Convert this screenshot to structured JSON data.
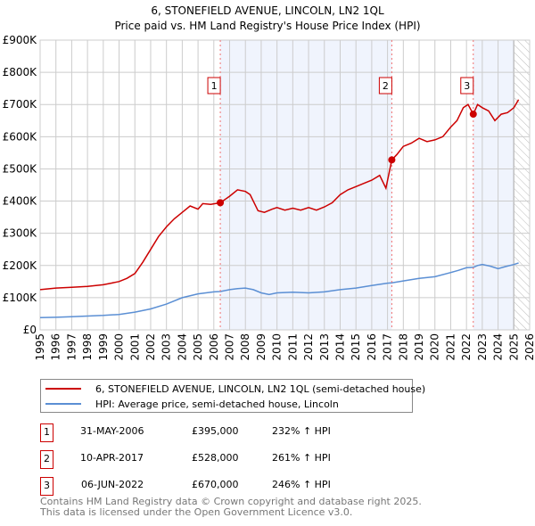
{
  "title": "6, STONEFIELD AVENUE, LINCOLN, LN2 1QL",
  "subtitle": "Price paid vs. HM Land Registry's House Price Index (HPI)",
  "chart_data": {
    "type": "line",
    "xlim": [
      1995,
      2026
    ],
    "ylim": [
      0,
      900000
    ],
    "y_ticks": [
      0,
      100000,
      200000,
      300000,
      400000,
      500000,
      600000,
      700000,
      800000,
      900000
    ],
    "y_tick_labels": [
      "£0",
      "£100K",
      "£200K",
      "£300K",
      "£400K",
      "£500K",
      "£600K",
      "£700K",
      "£800K",
      "£900K"
    ],
    "x_ticks": [
      "1995",
      "1996",
      "1997",
      "1998",
      "1999",
      "2000",
      "2001",
      "2002",
      "2003",
      "2004",
      "2005",
      "2006",
      "2007",
      "2008",
      "2009",
      "2010",
      "2011",
      "2012",
      "2013",
      "2014",
      "2015",
      "2016",
      "2017",
      "2018",
      "2019",
      "2020",
      "2021",
      "2022",
      "2023",
      "2024",
      "2025",
      "2026"
    ],
    "grid": true,
    "forecast_hatch_from": 2025.0,
    "series": [
      {
        "name": "6, STONEFIELD AVENUE, LINCOLN, LN2 1QL (semi-detached house)",
        "color": "#cc0000",
        "x": [
          1995,
          1996,
          1997,
          1998,
          1999,
          1999.5,
          2000,
          2000.5,
          2001,
          2001.5,
          2002,
          2002.5,
          2003,
          2003.5,
          2004,
          2004.5,
          2005,
          2005.3,
          2005.8,
          2006.41,
          2007,
          2007.5,
          2008,
          2008.3,
          2008.8,
          2009.2,
          2009.7,
          2010,
          2010.5,
          2011,
          2011.5,
          2012,
          2012.5,
          2013,
          2013.5,
          2014,
          2014.5,
          2015,
          2015.5,
          2016,
          2016.5,
          2016.9,
          2017.27,
          2017.6,
          2018,
          2018.5,
          2019,
          2019.5,
          2020,
          2020.5,
          2021,
          2021.4,
          2021.8,
          2022.1,
          2022.43,
          2022.7,
          2023,
          2023.4,
          2023.8,
          2024.2,
          2024.6,
          2025,
          2025.3
        ],
        "y": [
          125000,
          130000,
          132000,
          135000,
          140000,
          145000,
          150000,
          160000,
          175000,
          210000,
          250000,
          290000,
          320000,
          345000,
          365000,
          385000,
          375000,
          392000,
          390000,
          395000,
          415000,
          435000,
          430000,
          420000,
          370000,
          365000,
          375000,
          380000,
          372000,
          378000,
          372000,
          380000,
          372000,
          382000,
          395000,
          420000,
          435000,
          445000,
          455000,
          465000,
          480000,
          440000,
          528000,
          545000,
          570000,
          580000,
          595000,
          585000,
          590000,
          600000,
          630000,
          650000,
          690000,
          700000,
          670000,
          700000,
          690000,
          680000,
          650000,
          670000,
          675000,
          690000,
          715000
        ]
      },
      {
        "name": "HPI: Average price, semi-detached house, Lincoln",
        "color": "#5b8fd4",
        "x": [
          1995,
          1996,
          1997,
          1998,
          1999,
          2000,
          2001,
          2002,
          2003,
          2004,
          2005,
          2006,
          2006.41,
          2007,
          2007.5,
          2008,
          2008.5,
          2009,
          2009.5,
          2010,
          2011,
          2012,
          2013,
          2014,
          2015,
          2016,
          2017,
          2017.27,
          2018,
          2019,
          2020,
          2021,
          2021.5,
          2022,
          2022.43,
          2022.7,
          2023,
          2023.5,
          2024,
          2024.5,
          2025,
          2025.3
        ],
        "y": [
          38000,
          39000,
          41000,
          43000,
          45000,
          48000,
          55000,
          65000,
          80000,
          100000,
          112000,
          118000,
          119000,
          125000,
          128000,
          130000,
          125000,
          115000,
          110000,
          115000,
          117000,
          115000,
          118000,
          125000,
          130000,
          138000,
          145000,
          146000,
          152000,
          160000,
          165000,
          178000,
          185000,
          193000,
          194000,
          200000,
          203000,
          198000,
          190000,
          197000,
          203000,
          208000
        ]
      }
    ],
    "sales": [
      {
        "label": "1",
        "x": 2006.41,
        "y": 395000
      },
      {
        "label": "2",
        "x": 2017.27,
        "y": 528000
      },
      {
        "label": "3",
        "x": 2022.43,
        "y": 670000
      }
    ]
  },
  "legend": [
    {
      "label": "6, STONEFIELD AVENUE, LINCOLN, LN2 1QL (semi-detached house)",
      "color": "#cc0000"
    },
    {
      "label": "HPI: Average price, semi-detached house, Lincoln",
      "color": "#5b8fd4"
    }
  ],
  "sales_table": [
    {
      "num": "1",
      "date": "31-MAY-2006",
      "price": "£395,000",
      "hpi": "232% ↑ HPI"
    },
    {
      "num": "2",
      "date": "10-APR-2017",
      "price": "£528,000",
      "hpi": "261% ↑ HPI"
    },
    {
      "num": "3",
      "date": "06-JUN-2022",
      "price": "£670,000",
      "hpi": "246% ↑ HPI"
    }
  ],
  "footer": {
    "line1": "Contains HM Land Registry data © Crown copyright and database right 2025.",
    "line2": "This data is licensed under the Open Government Licence v3.0."
  }
}
